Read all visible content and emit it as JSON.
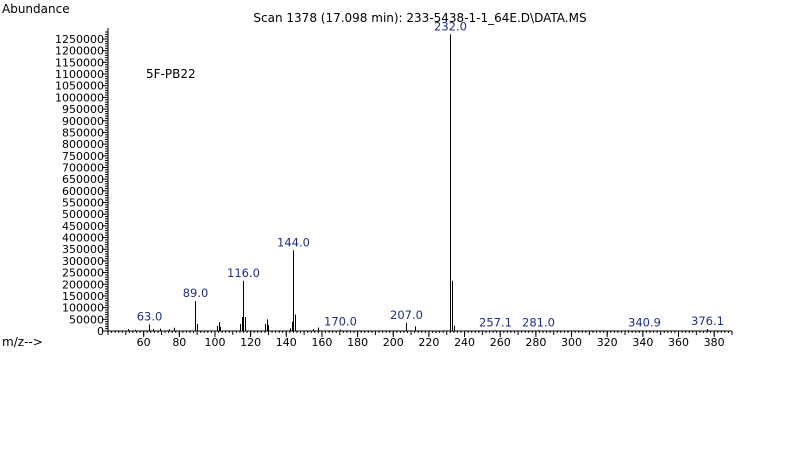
{
  "header": {
    "ylabel": "Abundance",
    "title": "Scan 1378 (17.098 min): 233-5438-1-1_64E.D\\DATA.MS",
    "xlabel": "m/z-->",
    "sample_name": "5F-PB22"
  },
  "colors": {
    "axis": "#000000",
    "peaks": "#000000",
    "peak_labels": "#1f2f86",
    "background": "#ffffff"
  },
  "chart_data": {
    "type": "bar",
    "title": "Scan 1378 (17.098 min): 233-5438-1-1_64E.D\\DATA.MS",
    "ylabel": "Abundance",
    "xlabel": "m/z-->",
    "annotation": "5F-PB22",
    "xlim": [
      40,
      390
    ],
    "ylim": [
      0,
      1280000
    ],
    "x_ticks": [
      60,
      80,
      100,
      120,
      140,
      160,
      180,
      200,
      220,
      240,
      260,
      280,
      300,
      320,
      340,
      360,
      380
    ],
    "y_ticks": [
      0,
      50000,
      100000,
      150000,
      200000,
      250000,
      300000,
      350000,
      400000,
      450000,
      500000,
      550000,
      600000,
      650000,
      700000,
      750000,
      800000,
      850000,
      900000,
      950000,
      1000000,
      1050000,
      1100000,
      1150000,
      1200000,
      1250000
    ],
    "grid": false,
    "legend": "none",
    "peaks": [
      {
        "mz": 51,
        "abundance": 8000
      },
      {
        "mz": 55,
        "abundance": 6000
      },
      {
        "mz": 63,
        "abundance": 28000,
        "label": "63.0"
      },
      {
        "mz": 65,
        "abundance": 9000
      },
      {
        "mz": 69,
        "abundance": 10000
      },
      {
        "mz": 74,
        "abundance": 8000
      },
      {
        "mz": 77,
        "abundance": 14000
      },
      {
        "mz": 89,
        "abundance": 128000,
        "label": "89.0"
      },
      {
        "mz": 90,
        "abundance": 30000
      },
      {
        "mz": 101,
        "abundance": 22000
      },
      {
        "mz": 102,
        "abundance": 38000
      },
      {
        "mz": 103,
        "abundance": 18000
      },
      {
        "mz": 114,
        "abundance": 30000
      },
      {
        "mz": 115,
        "abundance": 60000
      },
      {
        "mz": 116,
        "abundance": 215000,
        "label": "116.0"
      },
      {
        "mz": 117,
        "abundance": 60000
      },
      {
        "mz": 128,
        "abundance": 30000
      },
      {
        "mz": 129,
        "abundance": 50000
      },
      {
        "mz": 130,
        "abundance": 25000
      },
      {
        "mz": 142,
        "abundance": 12000
      },
      {
        "mz": 143,
        "abundance": 40000
      },
      {
        "mz": 144,
        "abundance": 345000,
        "label": "144.0"
      },
      {
        "mz": 145,
        "abundance": 70000
      },
      {
        "mz": 155,
        "abundance": 8000
      },
      {
        "mz": 158,
        "abundance": 15000
      },
      {
        "mz": 170,
        "abundance": 6000,
        "label": "170.0"
      },
      {
        "mz": 207,
        "abundance": 35000,
        "label": "207.0"
      },
      {
        "mz": 212,
        "abundance": 20000
      },
      {
        "mz": 232,
        "abundance": 1270000,
        "label": "232.0"
      },
      {
        "mz": 233,
        "abundance": 215000
      },
      {
        "mz": 234,
        "abundance": 22000
      },
      {
        "mz": 257.1,
        "abundance": 3000,
        "label": "257.1"
      },
      {
        "mz": 281,
        "abundance": 3000,
        "label": "281.0"
      },
      {
        "mz": 340.9,
        "abundance": 2000,
        "label": "340.9"
      },
      {
        "mz": 376.1,
        "abundance": 8000,
        "label": "376.1"
      }
    ]
  }
}
